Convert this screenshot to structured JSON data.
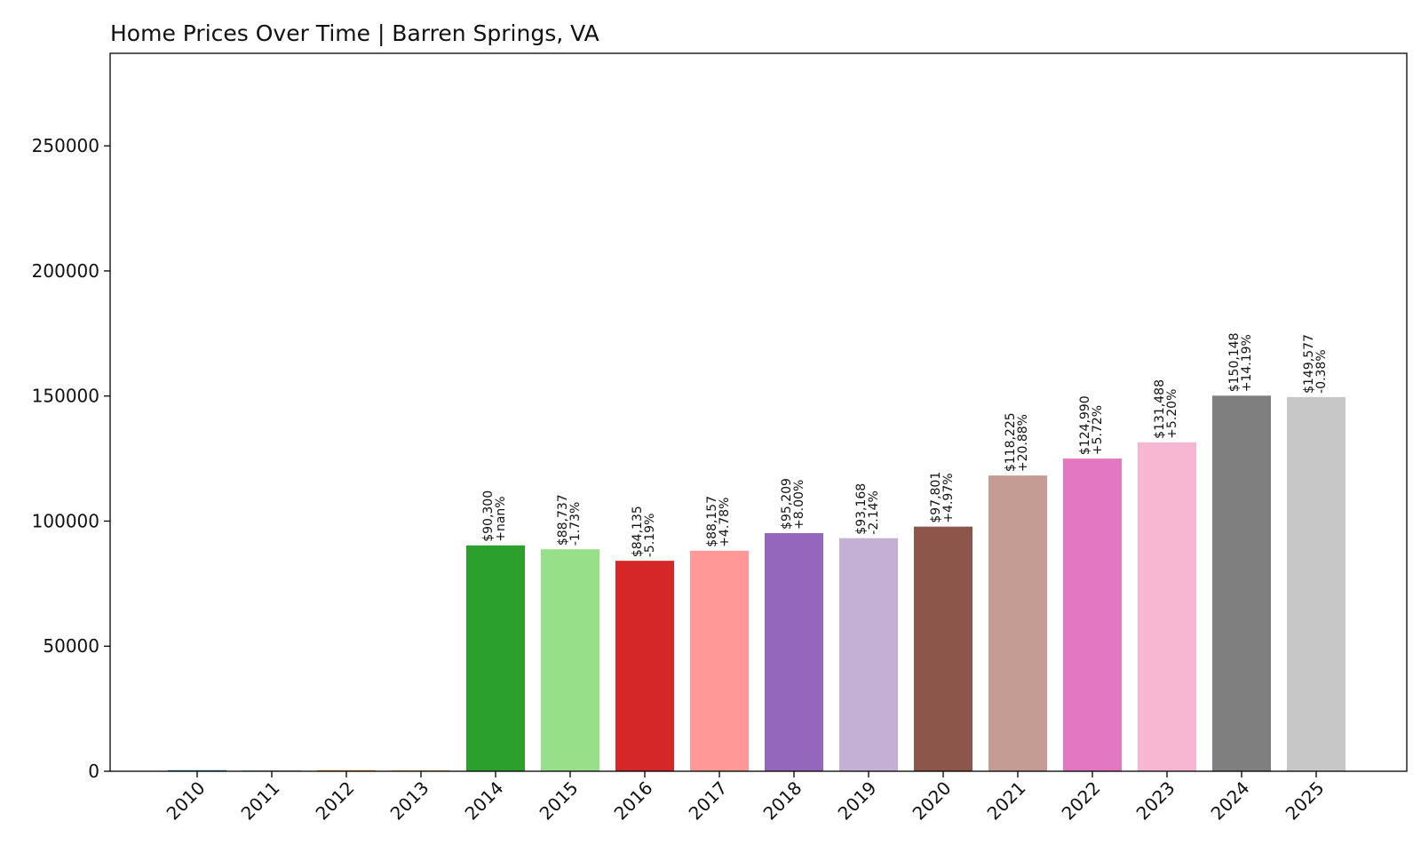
{
  "chart_data": {
    "type": "bar",
    "title": "Home Prices Over Time | Barren Springs, VA",
    "xlabel": "",
    "ylabel": "",
    "ylim": [
      0,
      287000
    ],
    "yticks": [
      0,
      50000,
      100000,
      150000,
      200000,
      250000
    ],
    "ytick_labels": [
      "0",
      "50000",
      "100000",
      "150000",
      "200000",
      "250000"
    ],
    "grid": false,
    "categories": [
      "2010",
      "2011",
      "2012",
      "2013",
      "2014",
      "2015",
      "2016",
      "2017",
      "2018",
      "2019",
      "2020",
      "2021",
      "2022",
      "2023",
      "2024",
      "2025"
    ],
    "values": [
      0,
      0,
      0,
      0,
      90300,
      88737,
      84135,
      88157,
      95209,
      93168,
      97801,
      118225,
      124990,
      131488,
      150148,
      149577
    ],
    "value_labels": [
      "",
      "",
      "",
      "",
      "$90,300",
      "$88,737",
      "$84,135",
      "$88,157",
      "$95,209",
      "$93,168",
      "$97,801",
      "$118,225",
      "$124,990",
      "$131,488",
      "$150,148",
      "$149,577"
    ],
    "change_labels": [
      "",
      "",
      "",
      "",
      "+nan%",
      "-1.73%",
      "-5.19%",
      "+4.78%",
      "+8.00%",
      "-2.14%",
      "+4.97%",
      "+20.88%",
      "+5.72%",
      "+5.20%",
      "+14.19%",
      "-0.38%"
    ],
    "colors": [
      "#1f77b4",
      "#aec7e8",
      "#ff7f0e",
      "#ffbb78",
      "#2ca02c",
      "#98df8a",
      "#d62728",
      "#ff9896",
      "#9467bd",
      "#c5b0d5",
      "#8c564b",
      "#c49c94",
      "#e377c2",
      "#f7b6d2",
      "#7f7f7f",
      "#c7c7c7"
    ]
  }
}
